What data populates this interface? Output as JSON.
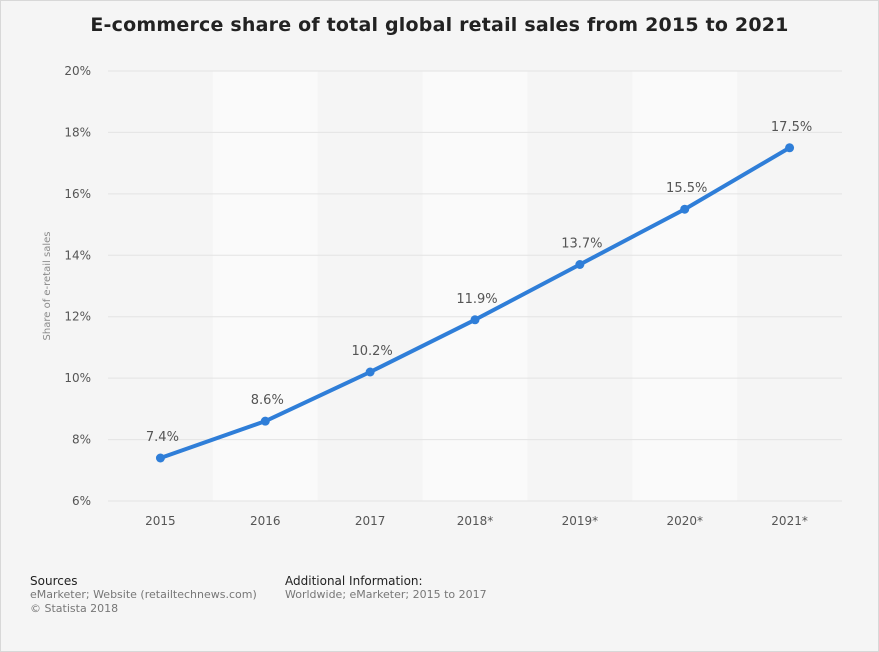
{
  "chart_data": {
    "type": "line",
    "title": "E-commerce share of total global retail sales from 2015 to 2021",
    "ylabel": "Share of e-retail sales",
    "xlabel": "",
    "categories": [
      "2015",
      "2016",
      "2017",
      "2018*",
      "2019*",
      "2020*",
      "2021*"
    ],
    "values": [
      7.4,
      8.6,
      10.2,
      11.9,
      13.7,
      15.5,
      17.5
    ],
    "data_labels": [
      "7.4%",
      "8.6%",
      "10.2%",
      "11.9%",
      "13.7%",
      "15.5%",
      "17.5%"
    ],
    "ylim": [
      6,
      20
    ],
    "yticks": [
      6,
      8,
      10,
      12,
      14,
      16,
      18,
      20
    ],
    "ytick_labels": [
      "6%",
      "8%",
      "10%",
      "12%",
      "14%",
      "16%",
      "18%",
      "20%"
    ],
    "grid": true,
    "line_color": "#2f7ed8"
  },
  "footer": {
    "sources_heading": "Sources",
    "sources_line1": "eMarketer; Website (retailtechnews.com)",
    "sources_line2": "© Statista 2018",
    "additional_heading": "Additional Information:",
    "additional_line1": "Worldwide; eMarketer; 2015 to 2017"
  }
}
